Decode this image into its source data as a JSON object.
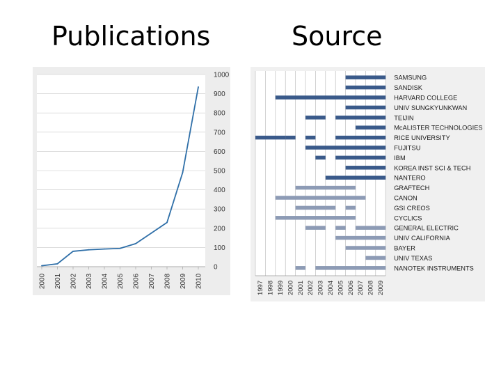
{
  "titles": {
    "left": "Publications",
    "right": "Source"
  },
  "colors": {
    "line": "#2f6fa8",
    "bar_dark": "#3a5a8a",
    "bar_light": "#8d9bb5",
    "grid": "#c8c8c8"
  },
  "chart_data": [
    {
      "type": "line",
      "title": "Publications",
      "x": [
        "2000",
        "2001",
        "2002",
        "2003",
        "2004",
        "2005",
        "2006",
        "2007",
        "2008",
        "2009",
        "2010"
      ],
      "values": [
        5,
        15,
        80,
        88,
        92,
        95,
        120,
        175,
        230,
        490,
        935
      ],
      "ylim": [
        0,
        1000
      ],
      "yticks": [
        "0",
        "100",
        "200",
        "300",
        "400",
        "500",
        "600",
        "700",
        "800",
        "900",
        "1000"
      ],
      "grid": true,
      "legend": "none"
    },
    {
      "type": "bar",
      "title": "Source",
      "years": [
        "1997",
        "1998",
        "1999",
        "2000",
        "2001",
        "2002",
        "2003",
        "2004",
        "2005",
        "2006",
        "2007",
        "2008",
        "2009"
      ],
      "grid": true,
      "legend": "none",
      "organizations": [
        {
          "name": "SAMSUNG",
          "tone": "dark",
          "spans": [
            [
              2006,
              2009
            ]
          ]
        },
        {
          "name": "SANDISK",
          "tone": "dark",
          "spans": [
            [
              2006,
              2009
            ]
          ]
        },
        {
          "name": "HARVARD COLLEGE",
          "tone": "dark",
          "spans": [
            [
              1999,
              2009
            ]
          ]
        },
        {
          "name": "UNIV SUNGKYUNKWAN",
          "tone": "dark",
          "spans": [
            [
              2006,
              2009
            ]
          ]
        },
        {
          "name": "TEIJIN",
          "tone": "dark",
          "spans": [
            [
              2002,
              2003
            ],
            [
              2005,
              2009
            ]
          ]
        },
        {
          "name": "McALISTER TECHNOLOGIES",
          "tone": "dark",
          "spans": [
            [
              2007,
              2009
            ]
          ]
        },
        {
          "name": "RICE UNIVERSITY",
          "tone": "dark",
          "spans": [
            [
              1997,
              1999
            ],
            [
              2000,
              2000
            ],
            [
              2002,
              2002
            ],
            [
              2005,
              2009
            ]
          ]
        },
        {
          "name": "FUJITSU",
          "tone": "dark",
          "spans": [
            [
              2002,
              2009
            ]
          ]
        },
        {
          "name": "IBM",
          "tone": "dark",
          "spans": [
            [
              2003,
              2003
            ],
            [
              2005,
              2009
            ]
          ]
        },
        {
          "name": "KOREA INST SCI & TECH",
          "tone": "dark",
          "spans": [
            [
              2006,
              2009
            ]
          ]
        },
        {
          "name": "NANTERO",
          "tone": "dark",
          "spans": [
            [
              2004,
              2009
            ]
          ]
        },
        {
          "name": "GRAFTECH",
          "tone": "light",
          "spans": [
            [
              2001,
              2006
            ]
          ]
        },
        {
          "name": "CANON",
          "tone": "light",
          "spans": [
            [
              1999,
              2007
            ]
          ]
        },
        {
          "name": "GSI CREOS",
          "tone": "light",
          "spans": [
            [
              2001,
              2003
            ],
            [
              2004,
              2004
            ],
            [
              2006,
              2006
            ]
          ]
        },
        {
          "name": "CYCLICS",
          "tone": "light",
          "spans": [
            [
              1999,
              2006
            ]
          ]
        },
        {
          "name": "GENERAL ELECTRIC",
          "tone": "light",
          "spans": [
            [
              2002,
              2003
            ],
            [
              2005,
              2005
            ],
            [
              2007,
              2009
            ]
          ]
        },
        {
          "name": "UNIV CALIFORNIA",
          "tone": "light",
          "spans": [
            [
              2005,
              2009
            ]
          ]
        },
        {
          "name": "BAYER",
          "tone": "light",
          "spans": [
            [
              2006,
              2009
            ]
          ]
        },
        {
          "name": "UNIV TEXAS",
          "tone": "light",
          "spans": [
            [
              2008,
              2009
            ]
          ]
        },
        {
          "name": "NANOTEK INSTRUMENTS",
          "tone": "light",
          "spans": [
            [
              2001,
              2001
            ],
            [
              2003,
              2009
            ]
          ]
        }
      ]
    }
  ]
}
